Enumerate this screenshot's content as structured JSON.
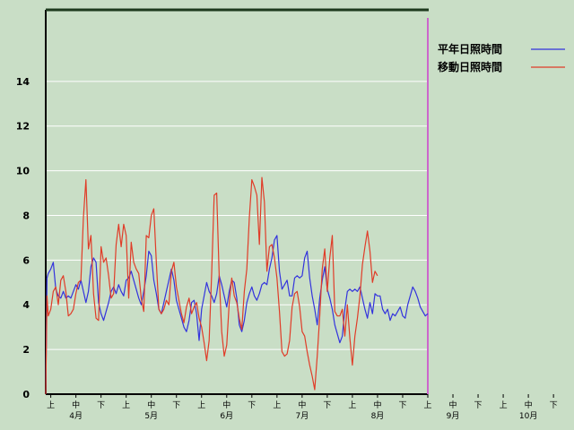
{
  "chart_data": {
    "type": "line",
    "title": "",
    "xlabel": "",
    "ylabel": "",
    "ylim": [
      0,
      17.2
    ],
    "yticks": [
      0,
      2,
      4,
      6,
      8,
      10,
      12,
      14
    ],
    "grid": true,
    "legend_position": "top-right",
    "x_ticks": [
      {
        "label": "上",
        "x": 2.0
      },
      {
        "label": "中",
        "x": 12.0
      },
      {
        "label": "下",
        "x": 22.0
      },
      {
        "label": "上",
        "x": 32.0
      },
      {
        "label": "中",
        "x": 42.0
      },
      {
        "label": "下",
        "x": 52.0
      },
      {
        "label": "上",
        "x": 62.0
      },
      {
        "label": "中",
        "x": 72.0
      },
      {
        "label": "下",
        "x": 82.0
      },
      {
        "label": "上",
        "x": 92.0
      },
      {
        "label": "中",
        "x": 102.0
      },
      {
        "label": "下",
        "x": 112.0
      },
      {
        "label": "上",
        "x": 122.0
      },
      {
        "label": "中",
        "x": 132.0
      },
      {
        "label": "下",
        "x": 142.0
      },
      {
        "label": "上",
        "x": 152.0
      },
      {
        "label": "中",
        "x": 162.0
      },
      {
        "label": "下",
        "x": 172.0
      },
      {
        "label": "上",
        "x": 182.0
      },
      {
        "label": "中",
        "x": 192.0
      },
      {
        "label": "下",
        "x": 202.0
      }
    ],
    "month_labels": [
      {
        "label": "4月",
        "x": 12.0
      },
      {
        "label": "5月",
        "x": 42.0
      },
      {
        "label": "6月",
        "x": 72.0
      },
      {
        "label": "7月",
        "x": 102.0
      },
      {
        "label": "8月",
        "x": 132.0
      },
      {
        "label": "9月",
        "x": 162.0
      },
      {
        "label": "10月",
        "x": 192.0
      }
    ],
    "series": [
      {
        "name": "平年日照時間",
        "color": "#3333dd",
        "points": [
          [
            0.0,
            0.0
          ],
          [
            0.5,
            5.2
          ],
          [
            1.0,
            5.4
          ],
          [
            2.0,
            5.6
          ],
          [
            3.0,
            5.9
          ],
          [
            4.0,
            4.7
          ],
          [
            5.0,
            4.4
          ],
          [
            6.0,
            4.3
          ],
          [
            7.0,
            4.6
          ],
          [
            8.0,
            4.3
          ],
          [
            9.0,
            4.4
          ],
          [
            10.0,
            4.3
          ],
          [
            11.0,
            4.6
          ],
          [
            12.0,
            4.9
          ],
          [
            13.0,
            4.7
          ],
          [
            14.0,
            5.1
          ],
          [
            15.0,
            4.6
          ],
          [
            16.0,
            4.1
          ],
          [
            17.0,
            4.6
          ],
          [
            18.0,
            5.7
          ],
          [
            19.0,
            6.1
          ],
          [
            20.0,
            5.9
          ],
          [
            21.0,
            4.1
          ],
          [
            22.0,
            3.6
          ],
          [
            23.0,
            3.3
          ],
          [
            24.0,
            3.7
          ],
          [
            25.0,
            4.1
          ],
          [
            26.0,
            4.6
          ],
          [
            27.0,
            4.8
          ],
          [
            28.0,
            4.5
          ],
          [
            29.0,
            4.9
          ],
          [
            30.0,
            4.6
          ],
          [
            31.0,
            4.4
          ],
          [
            32.0,
            5.1
          ],
          [
            33.0,
            5.2
          ],
          [
            34.0,
            5.5
          ],
          [
            35.0,
            5.1
          ],
          [
            36.0,
            4.7
          ],
          [
            37.0,
            4.3
          ],
          [
            38.0,
            4.0
          ],
          [
            39.0,
            4.6
          ],
          [
            40.0,
            5.3
          ],
          [
            41.0,
            6.4
          ],
          [
            42.0,
            6.2
          ],
          [
            43.0,
            5.1
          ],
          [
            44.0,
            4.5
          ],
          [
            45.0,
            3.8
          ],
          [
            46.0,
            3.6
          ],
          [
            47.0,
            4.1
          ],
          [
            48.0,
            4.6
          ],
          [
            49.0,
            5.1
          ],
          [
            50.0,
            5.6
          ],
          [
            51.0,
            5.1
          ],
          [
            52.0,
            4.2
          ],
          [
            53.0,
            3.8
          ],
          [
            54.0,
            3.4
          ],
          [
            55.0,
            3.0
          ],
          [
            56.0,
            2.8
          ],
          [
            57.0,
            3.3
          ],
          [
            58.0,
            4.1
          ],
          [
            59.0,
            4.2
          ],
          [
            60.0,
            3.6
          ],
          [
            61.0,
            2.4
          ],
          [
            62.0,
            3.8
          ],
          [
            63.0,
            4.4
          ],
          [
            64.0,
            5.0
          ],
          [
            65.0,
            4.6
          ],
          [
            66.0,
            4.4
          ],
          [
            67.0,
            4.1
          ],
          [
            68.0,
            4.5
          ],
          [
            69.0,
            5.3
          ],
          [
            70.0,
            4.9
          ],
          [
            71.0,
            4.4
          ],
          [
            72.0,
            3.9
          ],
          [
            73.0,
            4.6
          ],
          [
            74.0,
            5.1
          ],
          [
            75.0,
            5.0
          ],
          [
            76.0,
            4.3
          ],
          [
            77.0,
            3.1
          ],
          [
            78.0,
            2.8
          ],
          [
            79.0,
            3.3
          ],
          [
            80.0,
            4.1
          ],
          [
            81.0,
            4.5
          ],
          [
            82.0,
            4.8
          ],
          [
            83.0,
            4.4
          ],
          [
            84.0,
            4.2
          ],
          [
            85.0,
            4.5
          ],
          [
            86.0,
            4.9
          ],
          [
            87.0,
            5.0
          ],
          [
            88.0,
            4.9
          ],
          [
            89.0,
            5.6
          ],
          [
            90.0,
            6.1
          ],
          [
            91.0,
            6.9
          ],
          [
            92.0,
            7.1
          ],
          [
            93.0,
            5.5
          ],
          [
            94.0,
            4.7
          ],
          [
            95.0,
            4.9
          ],
          [
            96.0,
            5.1
          ],
          [
            97.0,
            4.4
          ],
          [
            98.0,
            4.4
          ],
          [
            99.0,
            5.2
          ],
          [
            100.0,
            5.3
          ],
          [
            101.0,
            5.2
          ],
          [
            102.0,
            5.3
          ],
          [
            103.0,
            6.1
          ],
          [
            104.0,
            6.4
          ],
          [
            105.0,
            5.2
          ],
          [
            106.0,
            4.4
          ],
          [
            107.0,
            3.8
          ],
          [
            108.0,
            3.1
          ],
          [
            109.0,
            4.3
          ],
          [
            110.0,
            5.1
          ],
          [
            111.0,
            5.7
          ],
          [
            112.0,
            4.7
          ],
          [
            113.0,
            4.3
          ],
          [
            114.0,
            3.8
          ],
          [
            115.0,
            3.1
          ],
          [
            116.0,
            2.7
          ],
          [
            117.0,
            2.3
          ],
          [
            118.0,
            2.6
          ],
          [
            119.0,
            3.8
          ],
          [
            120.0,
            4.6
          ],
          [
            121.0,
            4.7
          ],
          [
            122.0,
            4.6
          ],
          [
            123.0,
            4.7
          ],
          [
            124.0,
            4.6
          ],
          [
            125.0,
            4.8
          ],
          [
            126.0,
            4.3
          ],
          [
            127.0,
            3.8
          ],
          [
            128.0,
            3.4
          ],
          [
            129.0,
            4.1
          ],
          [
            130.0,
            3.6
          ],
          [
            131.0,
            4.5
          ],
          [
            132.0,
            4.4
          ],
          [
            133.0,
            4.4
          ],
          [
            134.0,
            3.8
          ],
          [
            135.0,
            3.6
          ],
          [
            136.0,
            3.8
          ],
          [
            137.0,
            3.3
          ],
          [
            138.0,
            3.6
          ],
          [
            139.0,
            3.5
          ],
          [
            140.0,
            3.7
          ],
          [
            141.0,
            3.9
          ],
          [
            142.0,
            3.5
          ],
          [
            143.0,
            3.4
          ],
          [
            144.0,
            4.0
          ],
          [
            145.0,
            4.4
          ],
          [
            146.0,
            4.8
          ],
          [
            147.0,
            4.6
          ],
          [
            148.0,
            4.3
          ],
          [
            149.0,
            3.9
          ],
          [
            150.0,
            3.7
          ],
          [
            151.0,
            3.5
          ],
          [
            152.0,
            3.6
          ]
        ]
      },
      {
        "name": "移動日照時間",
        "color": "#e03c28",
        "points": [
          [
            0.0,
            0.0
          ],
          [
            0.5,
            4.4
          ],
          [
            1.0,
            3.5
          ],
          [
            2.0,
            3.8
          ],
          [
            3.0,
            4.6
          ],
          [
            4.0,
            4.8
          ],
          [
            5.0,
            4.0
          ],
          [
            6.0,
            5.1
          ],
          [
            7.0,
            5.3
          ],
          [
            8.0,
            4.6
          ],
          [
            9.0,
            3.5
          ],
          [
            10.0,
            3.6
          ],
          [
            11.0,
            3.8
          ],
          [
            12.0,
            4.5
          ],
          [
            13.0,
            5.0
          ],
          [
            14.0,
            5.1
          ],
          [
            15.0,
            7.9
          ],
          [
            16.0,
            9.6
          ],
          [
            17.0,
            6.5
          ],
          [
            18.0,
            7.1
          ],
          [
            19.0,
            4.5
          ],
          [
            20.0,
            3.4
          ],
          [
            21.0,
            3.3
          ],
          [
            22.0,
            6.6
          ],
          [
            23.0,
            5.9
          ],
          [
            24.0,
            6.1
          ],
          [
            25.0,
            5.3
          ],
          [
            26.0,
            4.3
          ],
          [
            27.0,
            4.5
          ],
          [
            28.0,
            6.7
          ],
          [
            29.0,
            7.6
          ],
          [
            30.0,
            6.6
          ],
          [
            31.0,
            7.6
          ],
          [
            32.0,
            7.1
          ],
          [
            33.0,
            4.3
          ],
          [
            34.0,
            6.8
          ],
          [
            35.0,
            5.9
          ],
          [
            36.0,
            5.6
          ],
          [
            37.0,
            5.4
          ],
          [
            38.0,
            4.3
          ],
          [
            39.0,
            3.7
          ],
          [
            40.0,
            7.1
          ],
          [
            41.0,
            7.0
          ],
          [
            42.0,
            8.0
          ],
          [
            43.0,
            8.3
          ],
          [
            44.0,
            5.9
          ],
          [
            45.0,
            3.8
          ],
          [
            46.0,
            3.6
          ],
          [
            47.0,
            3.8
          ],
          [
            48.0,
            4.2
          ],
          [
            49.0,
            4.0
          ],
          [
            50.0,
            5.5
          ],
          [
            51.0,
            5.9
          ],
          [
            52.0,
            4.8
          ],
          [
            53.0,
            4.2
          ],
          [
            54.0,
            3.6
          ],
          [
            55.0,
            3.2
          ],
          [
            56.0,
            3.9
          ],
          [
            57.0,
            4.3
          ],
          [
            58.0,
            3.6
          ],
          [
            59.0,
            3.9
          ],
          [
            60.0,
            4.1
          ],
          [
            61.0,
            3.4
          ],
          [
            62.0,
            3.0
          ],
          [
            63.0,
            2.3
          ],
          [
            64.0,
            1.5
          ],
          [
            65.0,
            2.4
          ],
          [
            66.0,
            5.4
          ],
          [
            67.0,
            8.9
          ],
          [
            68.0,
            9.0
          ],
          [
            69.0,
            5.3
          ],
          [
            70.0,
            2.8
          ],
          [
            71.0,
            1.7
          ],
          [
            72.0,
            2.2
          ],
          [
            73.0,
            4.1
          ],
          [
            74.0,
            5.2
          ],
          [
            75.0,
            4.4
          ],
          [
            76.0,
            4.1
          ],
          [
            77.0,
            3.4
          ],
          [
            78.0,
            2.9
          ],
          [
            79.0,
            4.6
          ],
          [
            80.0,
            5.6
          ],
          [
            81.0,
            7.9
          ],
          [
            82.0,
            9.6
          ],
          [
            83.0,
            9.3
          ],
          [
            84.0,
            8.9
          ],
          [
            85.0,
            6.7
          ],
          [
            86.0,
            9.7
          ],
          [
            87.0,
            8.6
          ],
          [
            88.0,
            5.5
          ],
          [
            89.0,
            6.6
          ],
          [
            90.0,
            6.7
          ],
          [
            91.0,
            6.1
          ],
          [
            92.0,
            5.2
          ],
          [
            93.0,
            3.7
          ],
          [
            94.0,
            1.9
          ],
          [
            95.0,
            1.7
          ],
          [
            96.0,
            1.8
          ],
          [
            97.0,
            2.4
          ],
          [
            98.0,
            3.9
          ],
          [
            99.0,
            4.5
          ],
          [
            100.0,
            4.6
          ],
          [
            101.0,
            3.9
          ],
          [
            102.0,
            2.8
          ],
          [
            103.0,
            2.6
          ],
          [
            104.0,
            1.9
          ],
          [
            105.0,
            1.3
          ],
          [
            106.0,
            0.8
          ],
          [
            107.0,
            0.2
          ],
          [
            108.0,
            1.7
          ],
          [
            109.0,
            3.5
          ],
          [
            110.0,
            5.6
          ],
          [
            111.0,
            6.5
          ],
          [
            112.0,
            4.6
          ],
          [
            113.0,
            6.1
          ],
          [
            114.0,
            7.1
          ],
          [
            115.0,
            3.7
          ],
          [
            116.0,
            3.5
          ],
          [
            117.0,
            3.5
          ],
          [
            118.0,
            3.8
          ],
          [
            119.0,
            2.6
          ],
          [
            120.0,
            4.0
          ],
          [
            121.0,
            2.5
          ],
          [
            122.0,
            1.3
          ],
          [
            123.0,
            2.6
          ],
          [
            124.0,
            3.4
          ],
          [
            125.0,
            4.4
          ],
          [
            126.0,
            5.8
          ],
          [
            127.0,
            6.6
          ],
          [
            128.0,
            7.3
          ],
          [
            129.0,
            6.4
          ],
          [
            130.0,
            5.0
          ],
          [
            131.0,
            5.5
          ],
          [
            132.0,
            5.3
          ]
        ]
      }
    ]
  }
}
